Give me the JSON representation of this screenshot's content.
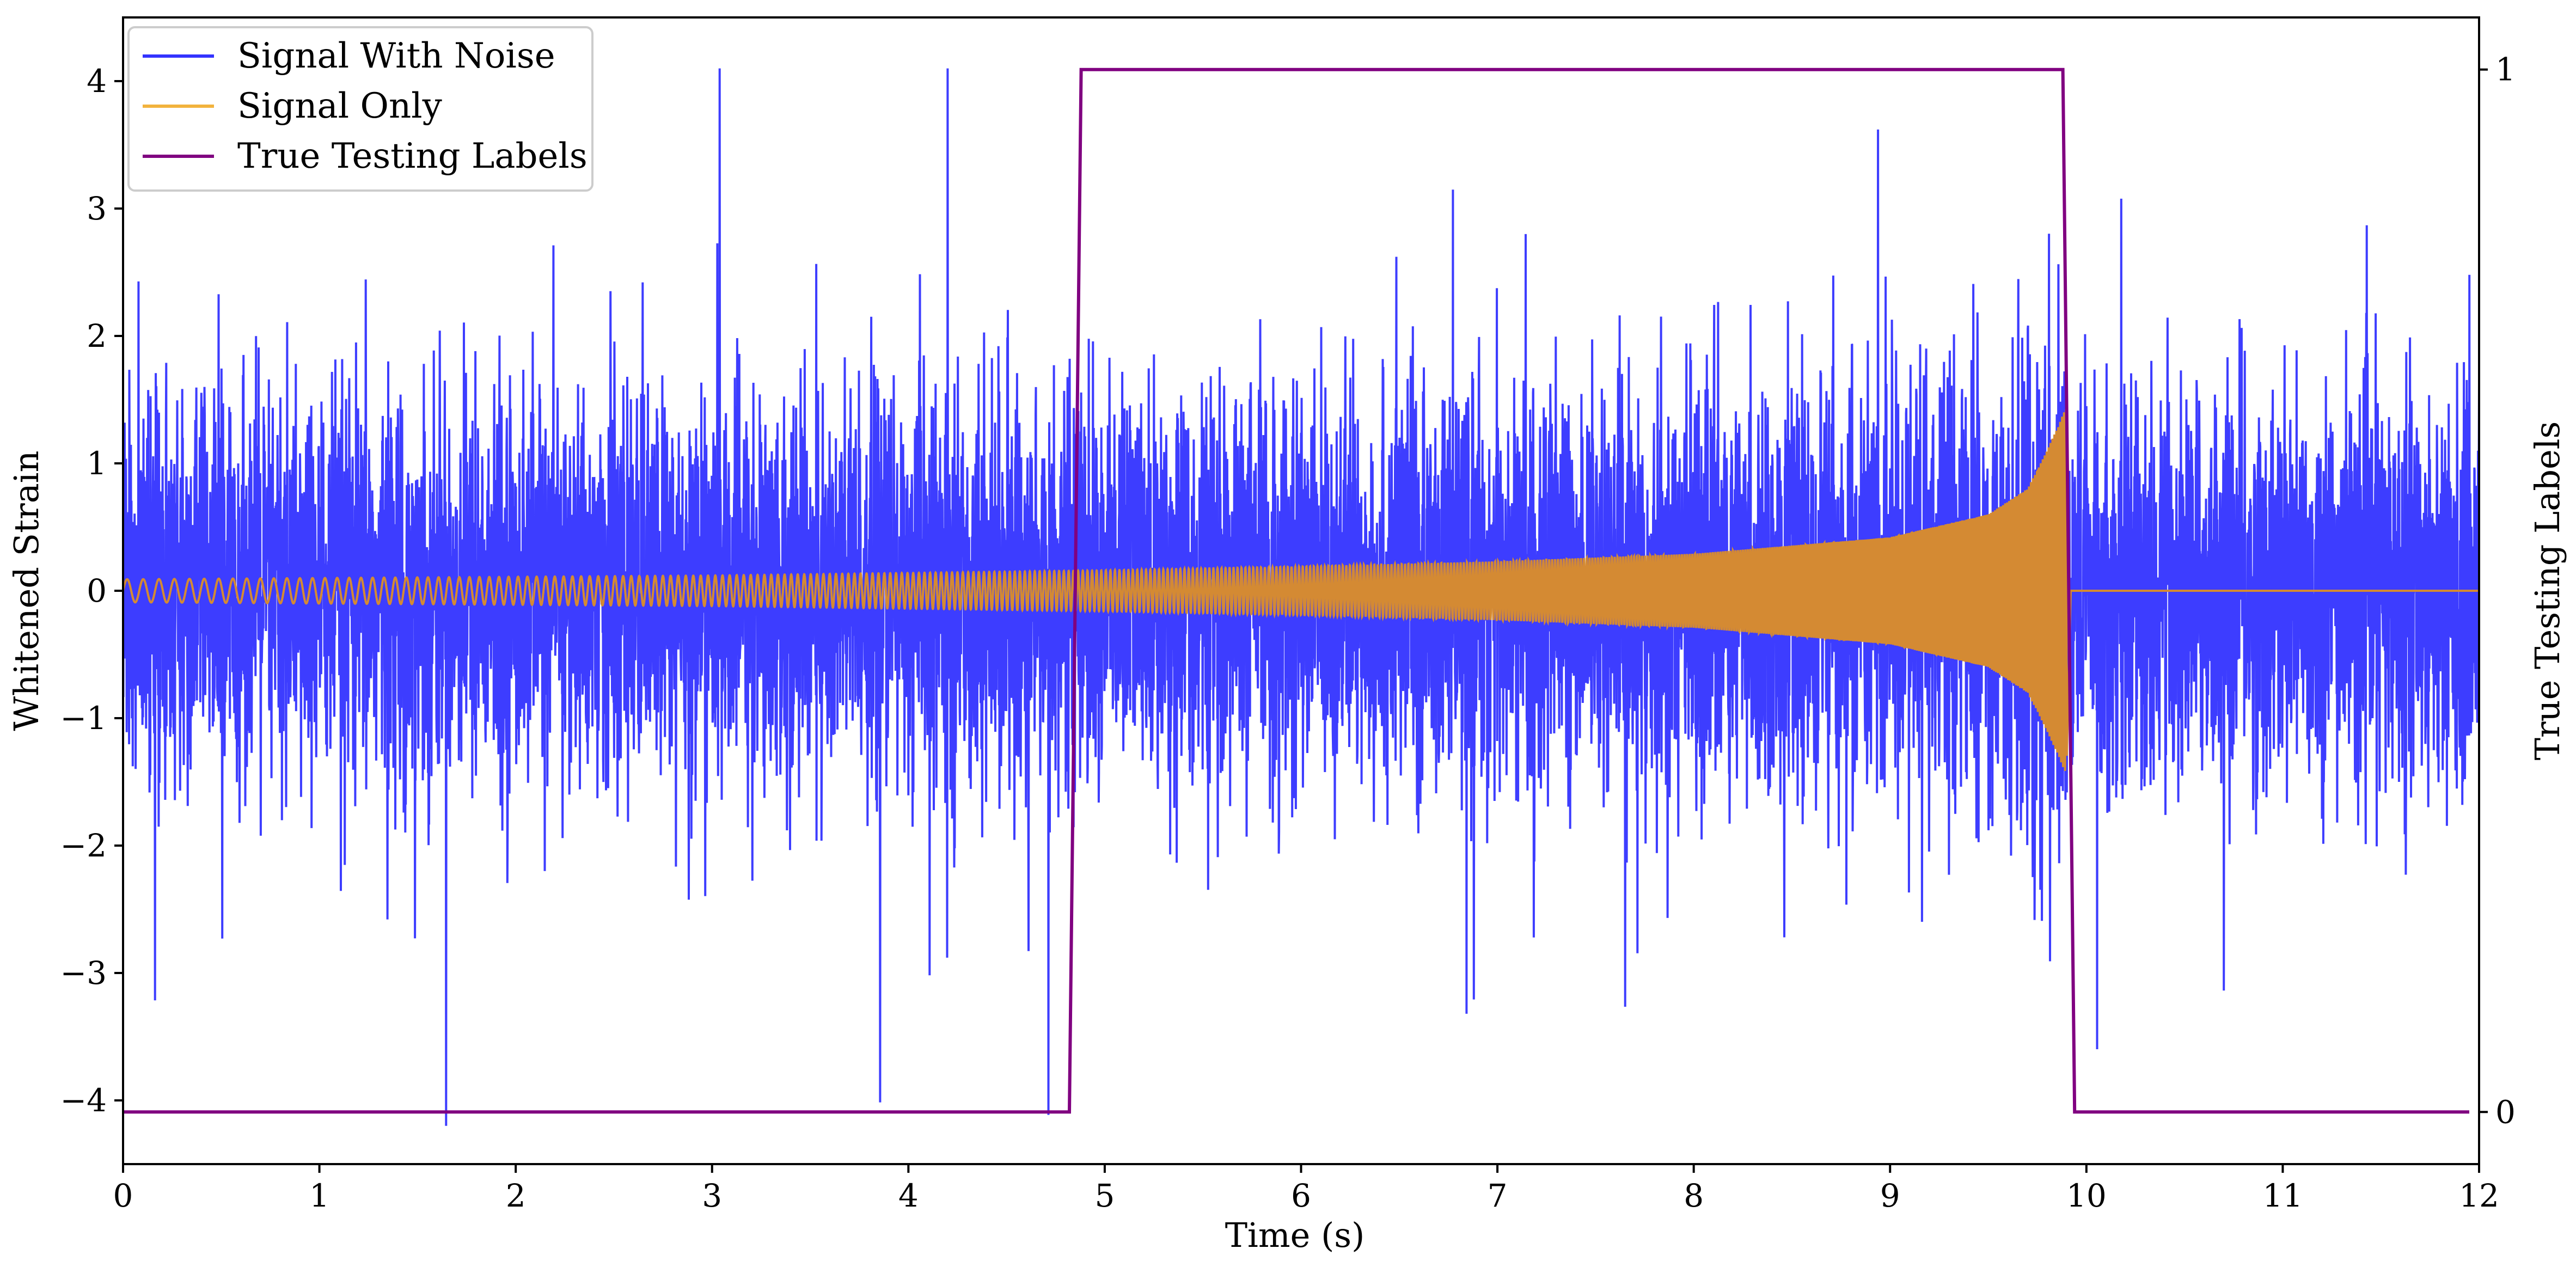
{
  "chart_data": {
    "type": "line",
    "title": "",
    "xlabel": "Time (s)",
    "ylabel": "Whitened Strain",
    "y2label": "True Testing Labels",
    "xlim": [
      0,
      12
    ],
    "ylim": [
      -4.5,
      4.5
    ],
    "y2lim": [
      -0.05,
      1.05
    ],
    "x_ticks": [
      "0",
      "1",
      "2",
      "3",
      "4",
      "5",
      "6",
      "7",
      "8",
      "9",
      "10",
      "11",
      "12"
    ],
    "y_ticks": [
      "−4",
      "−3",
      "−2",
      "−1",
      "0",
      "1",
      "2",
      "3",
      "4"
    ],
    "y2_ticks": [
      "0",
      "1"
    ],
    "grid": false,
    "legend": "top-left",
    "series": [
      {
        "name": "Signal With Noise",
        "color": "#3333ff",
        "axis": "left",
        "description_range": [
          -4.2,
          4.1
        ],
        "noise_std": 0.75,
        "signal": "plus inspiral chirp from 0 s to 9.9 s"
      },
      {
        "name": "Signal Only",
        "color": "#d48a33",
        "axis": "left",
        "envelope": {
          "t": [
            0,
            1,
            2,
            3,
            4,
            5,
            6,
            7,
            8,
            9,
            9.5,
            9.7,
            9.8,
            9.9
          ],
          "amplitude": [
            0.09,
            0.1,
            0.11,
            0.12,
            0.14,
            0.16,
            0.19,
            0.23,
            0.29,
            0.42,
            0.6,
            0.8,
            1.1,
            1.45
          ]
        },
        "after_signal_value": 0
      },
      {
        "name": "True Testing Labels",
        "color": "#800080",
        "axis": "right",
        "x": [
          0,
          4.82,
          4.88,
          9.88,
          9.94,
          11.95
        ],
        "y": [
          0,
          0,
          1,
          1,
          0,
          0
        ]
      }
    ]
  }
}
